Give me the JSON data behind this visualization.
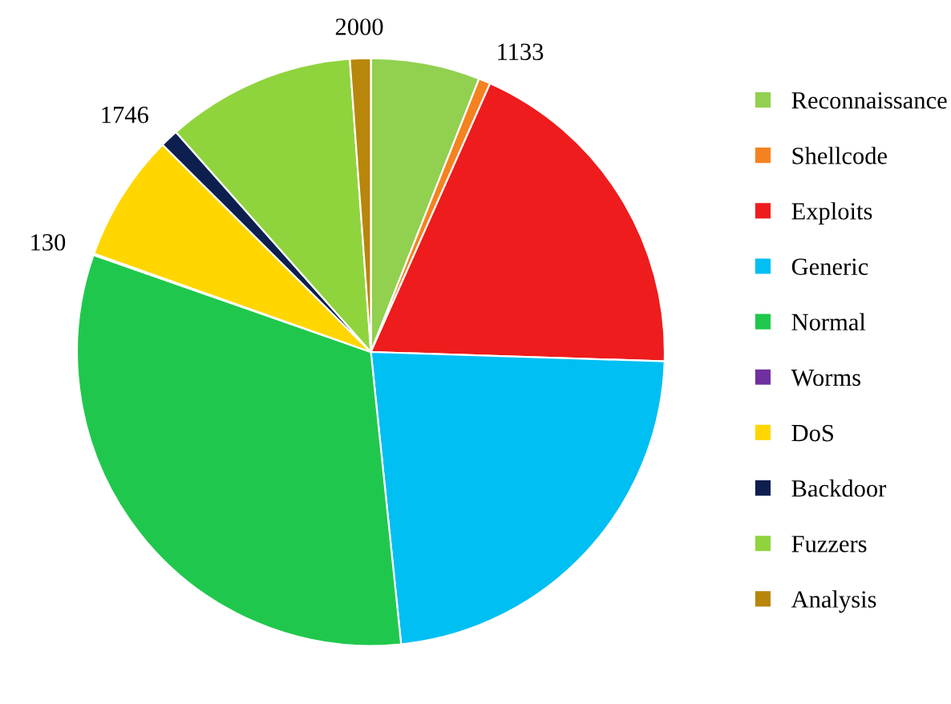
{
  "chart_data": {
    "type": "pie",
    "categories": [
      "Reconnaissance",
      "Shellcode",
      "Exploits",
      "Generic",
      "Normal",
      "Worms",
      "DoS",
      "Backdoor",
      "Fuzzers",
      "Analysis"
    ],
    "values": [
      10500,
      1133,
      33000,
      40000,
      56000,
      130,
      12300,
      1746,
      18200,
      2000
    ],
    "colors": [
      "#92d050",
      "#f58220",
      "#ee1c1c",
      "#00bff3",
      "#1fc84c",
      "#7030a0",
      "#ffd600",
      "#0c1f4e",
      "#8fd43c",
      "#b8860b"
    ],
    "value_labels": [
      null,
      "1133",
      null,
      null,
      null,
      "130",
      null,
      "1746",
      null,
      "2000"
    ],
    "legend": "right"
  }
}
